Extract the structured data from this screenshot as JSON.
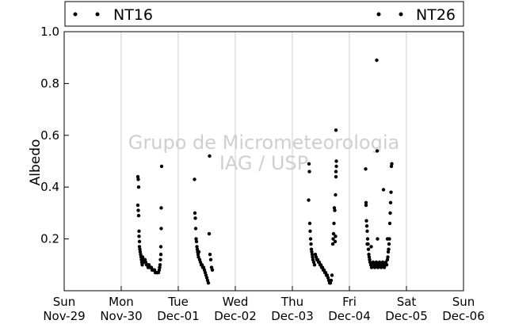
{
  "chart_data": {
    "type": "scatter",
    "title": "",
    "xlabel": "",
    "ylabel": "Albedo",
    "ylim": [
      0,
      1.0
    ],
    "y_ticks": [
      "0.2",
      "0.4",
      "0.6",
      "0.8",
      "1.0"
    ],
    "x_ticks": [
      {
        "day": "Sun",
        "date": "Nov-29"
      },
      {
        "day": "Mon",
        "date": "Nov-30"
      },
      {
        "day": "Tue",
        "date": "Dec-01"
      },
      {
        "day": "Wed",
        "date": "Dec-02"
      },
      {
        "day": "Thu",
        "date": "Dec-03"
      },
      {
        "day": "Fri",
        "date": "Dec-04"
      },
      {
        "day": "Sat",
        "date": "Dec-05"
      },
      {
        "day": "Sun",
        "date": "Dec-06"
      }
    ],
    "grid": "vertical",
    "legend_position": "top",
    "watermark": [
      "Grupo de Micrometeorologia",
      "IAG / USP"
    ],
    "series": [
      {
        "name": "NT16",
        "color": "#000000",
        "points": [
          [
            "Nov-30 07:00",
            0.44
          ],
          [
            "Nov-30 07:10",
            0.43
          ],
          [
            "Nov-30 07:20",
            0.4
          ],
          [
            "Nov-30 07:00",
            0.33
          ],
          [
            "Nov-30 07:10",
            0.31
          ],
          [
            "Nov-30 07:20",
            0.29
          ],
          [
            "Nov-30 07:30",
            0.23
          ],
          [
            "Nov-30 07:30",
            0.21
          ],
          [
            "Nov-30 07:40",
            0.19
          ],
          [
            "Nov-30 07:40",
            0.17
          ],
          [
            "Nov-30 07:50",
            0.16
          ],
          [
            "Nov-30 08:00",
            0.15
          ],
          [
            "Nov-30 08:10",
            0.14
          ],
          [
            "Nov-30 08:20",
            0.13
          ],
          [
            "Nov-30 08:30",
            0.12
          ],
          [
            "Nov-30 08:40",
            0.11
          ],
          [
            "Nov-30 08:50",
            0.1
          ],
          [
            "Nov-30 09:00",
            0.13
          ],
          [
            "Nov-30 09:20",
            0.12
          ],
          [
            "Nov-30 09:40",
            0.11
          ],
          [
            "Nov-30 10:00",
            0.12
          ],
          [
            "Nov-30 10:20",
            0.11
          ],
          [
            "Nov-30 10:40",
            0.1
          ],
          [
            "Nov-30 11:00",
            0.1
          ],
          [
            "Nov-30 11:20",
            0.09
          ],
          [
            "Nov-30 11:40",
            0.1
          ],
          [
            "Nov-30 12:00",
            0.09
          ],
          [
            "Nov-30 12:20",
            0.09
          ],
          [
            "Nov-30 12:40",
            0.09
          ],
          [
            "Nov-30 13:00",
            0.08
          ],
          [
            "Nov-30 13:20",
            0.08
          ],
          [
            "Nov-30 13:40",
            0.08
          ],
          [
            "Nov-30 14:00",
            0.08
          ],
          [
            "Nov-30 14:20",
            0.07
          ],
          [
            "Nov-30 14:40",
            0.07
          ],
          [
            "Nov-30 15:00",
            0.07
          ],
          [
            "Nov-30 15:20",
            0.07
          ],
          [
            "Nov-30 15:40",
            0.07
          ],
          [
            "Nov-30 16:00",
            0.08
          ],
          [
            "Nov-30 16:10",
            0.09
          ],
          [
            "Nov-30 16:20",
            0.1
          ],
          [
            "Nov-30 16:30",
            0.12
          ],
          [
            "Nov-30 16:40",
            0.14
          ],
          [
            "Nov-30 16:40",
            0.17
          ],
          [
            "Nov-30 16:50",
            0.24
          ],
          [
            "Nov-30 16:50",
            0.32
          ],
          [
            "Nov-30 17:00",
            0.48
          ],
          [
            "Dec-01 06:50",
            0.43
          ],
          [
            "Dec-01 07:00",
            0.3
          ],
          [
            "Dec-01 07:10",
            0.28
          ],
          [
            "Dec-01 07:20",
            0.24
          ],
          [
            "Dec-01 07:30",
            0.2
          ],
          [
            "Dec-01 07:40",
            0.19
          ],
          [
            "Dec-01 07:50",
            0.17
          ],
          [
            "Dec-01 08:00",
            0.16
          ],
          [
            "Dec-01 08:10",
            0.15
          ],
          [
            "Dec-01 08:20",
            0.14
          ],
          [
            "Dec-01 08:30",
            0.13
          ],
          [
            "Dec-01 08:40",
            0.15
          ],
          [
            "Dec-01 09:00",
            0.12
          ],
          [
            "Dec-01 09:20",
            0.11
          ],
          [
            "Dec-01 09:40",
            0.1
          ],
          [
            "Dec-01 10:00",
            0.1
          ],
          [
            "Dec-01 10:20",
            0.09
          ],
          [
            "Dec-01 10:40",
            0.09
          ],
          [
            "Dec-01 11:00",
            0.08
          ],
          [
            "Dec-01 11:20",
            0.07
          ],
          [
            "Dec-01 11:40",
            0.06
          ],
          [
            "Dec-01 12:00",
            0.05
          ],
          [
            "Dec-01 12:20",
            0.04
          ],
          [
            "Dec-01 12:40",
            0.03
          ],
          [
            "Dec-01 13:00",
            0.22
          ],
          [
            "Dec-01 13:20",
            0.14
          ],
          [
            "Dec-01 13:40",
            0.12
          ],
          [
            "Dec-01 14:00",
            0.09
          ],
          [
            "Dec-01 14:20",
            0.08
          ],
          [
            "Dec-01 13:10",
            0.52
          ],
          [
            "Dec-03 06:50",
            0.35
          ],
          [
            "Dec-03 07:00",
            0.49
          ],
          [
            "Dec-03 07:10",
            0.46
          ],
          [
            "Dec-03 07:20",
            0.26
          ],
          [
            "Dec-03 07:30",
            0.23
          ],
          [
            "Dec-03 07:40",
            0.2
          ],
          [
            "Dec-03 07:50",
            0.18
          ],
          [
            "Dec-03 08:00",
            0.16
          ],
          [
            "Dec-03 08:10",
            0.15
          ],
          [
            "Dec-03 08:20",
            0.14
          ],
          [
            "Dec-03 08:30",
            0.13
          ],
          [
            "Dec-03 08:40",
            0.12
          ],
          [
            "Dec-03 09:00",
            0.11
          ],
          [
            "Dec-03 09:20",
            0.1
          ],
          [
            "Dec-03 09:40",
            0.14
          ],
          [
            "Dec-03 10:00",
            0.13
          ],
          [
            "Dec-03 10:20",
            0.12
          ],
          [
            "Dec-03 10:40",
            0.12
          ],
          [
            "Dec-03 11:00",
            0.11
          ],
          [
            "Dec-03 11:20",
            0.11
          ],
          [
            "Dec-03 11:40",
            0.1
          ],
          [
            "Dec-03 12:00",
            0.1
          ],
          [
            "Dec-03 12:20",
            0.09
          ],
          [
            "Dec-03 12:40",
            0.09
          ],
          [
            "Dec-03 13:00",
            0.08
          ],
          [
            "Dec-03 13:20",
            0.08
          ],
          [
            "Dec-03 13:40",
            0.07
          ],
          [
            "Dec-03 14:00",
            0.07
          ],
          [
            "Dec-03 14:20",
            0.06
          ],
          [
            "Dec-03 14:40",
            0.06
          ],
          [
            "Dec-03 15:00",
            0.05
          ],
          [
            "Dec-03 15:20",
            0.04
          ],
          [
            "Dec-03 15:40",
            0.03
          ],
          [
            "Dec-03 16:00",
            0.03
          ],
          [
            "Dec-03 16:20",
            0.04
          ],
          [
            "Dec-03 16:40",
            0.06
          ],
          [
            "Dec-03 17:00",
            0.18
          ],
          [
            "Dec-03 17:10",
            0.2
          ],
          [
            "Dec-03 17:20",
            0.22
          ],
          [
            "Dec-03 17:30",
            0.26
          ],
          [
            "Dec-03 17:40",
            0.32
          ],
          [
            "Dec-03 17:50",
            0.31
          ],
          [
            "Dec-03 18:00",
            0.19
          ],
          [
            "Dec-03 18:10",
            0.21
          ],
          [
            "Dec-03 18:20",
            0.44
          ],
          [
            "Dec-03 18:20",
            0.46
          ],
          [
            "Dec-03 18:30",
            0.5
          ],
          [
            "Dec-03 18:30",
            0.48
          ],
          [
            "Dec-03 18:10",
            0.37
          ],
          [
            "Dec-03 18:20",
            0.62
          ],
          [
            "Dec-04 06:50",
            0.47
          ],
          [
            "Dec-04 07:00",
            0.34
          ],
          [
            "Dec-04 07:00",
            0.33
          ],
          [
            "Dec-04 07:10",
            0.27
          ],
          [
            "Dec-04 07:20",
            0.25
          ],
          [
            "Dec-04 07:30",
            0.23
          ],
          [
            "Dec-04 07:40",
            0.2
          ],
          [
            "Dec-04 07:50",
            0.18
          ],
          [
            "Dec-04 08:00",
            0.16
          ],
          [
            "Dec-04 08:10",
            0.14
          ],
          [
            "Dec-04 08:20",
            0.13
          ],
          [
            "Dec-04 08:30",
            0.12
          ],
          [
            "Dec-04 08:40",
            0.11
          ],
          [
            "Dec-04 09:00",
            0.1
          ],
          [
            "Dec-04 09:20",
            0.09
          ],
          [
            "Dec-04 09:40",
            0.1
          ],
          [
            "Dec-04 10:00",
            0.11
          ],
          [
            "Dec-04 10:20",
            0.1
          ],
          [
            "Dec-04 10:40",
            0.09
          ],
          [
            "Dec-04 11:00",
            0.1
          ],
          [
            "Dec-04 11:20",
            0.11
          ],
          [
            "Dec-04 11:40",
            0.1
          ],
          [
            "Dec-04 12:00",
            0.09
          ],
          [
            "Dec-04 12:20",
            0.1
          ],
          [
            "Dec-04 12:40",
            0.11
          ],
          [
            "Dec-04 13:00",
            0.1
          ],
          [
            "Dec-04 13:20",
            0.09
          ],
          [
            "Dec-04 13:40",
            0.1
          ],
          [
            "Dec-04 14:00",
            0.11
          ],
          [
            "Dec-04 14:20",
            0.1
          ],
          [
            "Dec-04 14:40",
            0.09
          ],
          [
            "Dec-04 15:00",
            0.1
          ],
          [
            "Dec-04 15:20",
            0.11
          ],
          [
            "Dec-04 15:40",
            0.1
          ],
          [
            "Dec-04 16:00",
            0.12
          ],
          [
            "Dec-04 16:10",
            0.13
          ],
          [
            "Dec-04 16:20",
            0.15
          ],
          [
            "Dec-04 16:30",
            0.16
          ],
          [
            "Dec-04 16:40",
            0.18
          ],
          [
            "Dec-04 16:50",
            0.2
          ],
          [
            "Dec-04 17:00",
            0.26
          ],
          [
            "Dec-04 17:10",
            0.3
          ],
          [
            "Dec-04 17:20",
            0.34
          ],
          [
            "Dec-04 17:30",
            0.38
          ],
          [
            "Dec-04 17:40",
            0.48
          ],
          [
            "Dec-04 17:50",
            0.49
          ],
          [
            "Dec-04 14:20",
            0.39
          ],
          [
            "Dec-04 11:30",
            0.89
          ],
          [
            "Dec-04 11:40",
            0.54
          ],
          [
            "Dec-04 11:50",
            0.2
          ],
          [
            "Dec-04 16:00",
            0.2
          ],
          [
            "Dec-04 07:30",
            0.18
          ],
          [
            "Dec-04 09:10",
            0.17
          ]
        ]
      },
      {
        "name": "NT26",
        "color": "#000000",
        "points": []
      }
    ]
  }
}
